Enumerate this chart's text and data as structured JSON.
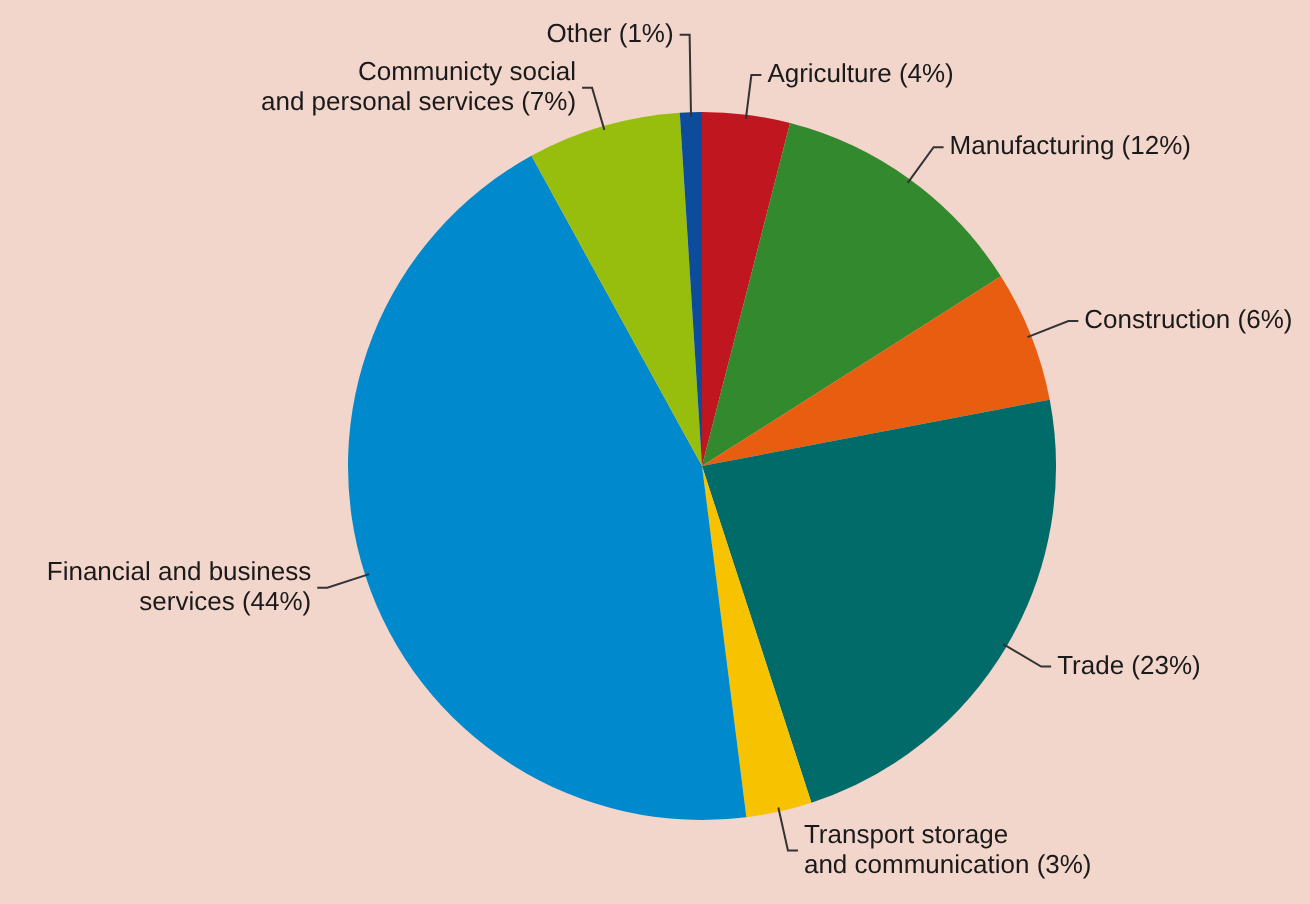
{
  "chart_data": {
    "type": "pie",
    "categories": [
      "Agriculture",
      "Manufacturing",
      "Construction",
      "Trade",
      "Transport storage\nand communication",
      "Financial and business\nservices",
      "Communicty social\nand personal services",
      "Other"
    ],
    "values": [
      4,
      12,
      6,
      23,
      3,
      44,
      7,
      1
    ],
    "value_labels": [
      "(4%)",
      "(12%)",
      "(6%)",
      "(23%)",
      "(3%)",
      "(44%)",
      "(7%)",
      "(1%)"
    ],
    "colors": [
      "#c0161f",
      "#338a2e",
      "#e85d10",
      "#006b68",
      "#f7c200",
      "#0089cc",
      "#97be0d",
      "#0d4c9a"
    ],
    "legend": false
  }
}
